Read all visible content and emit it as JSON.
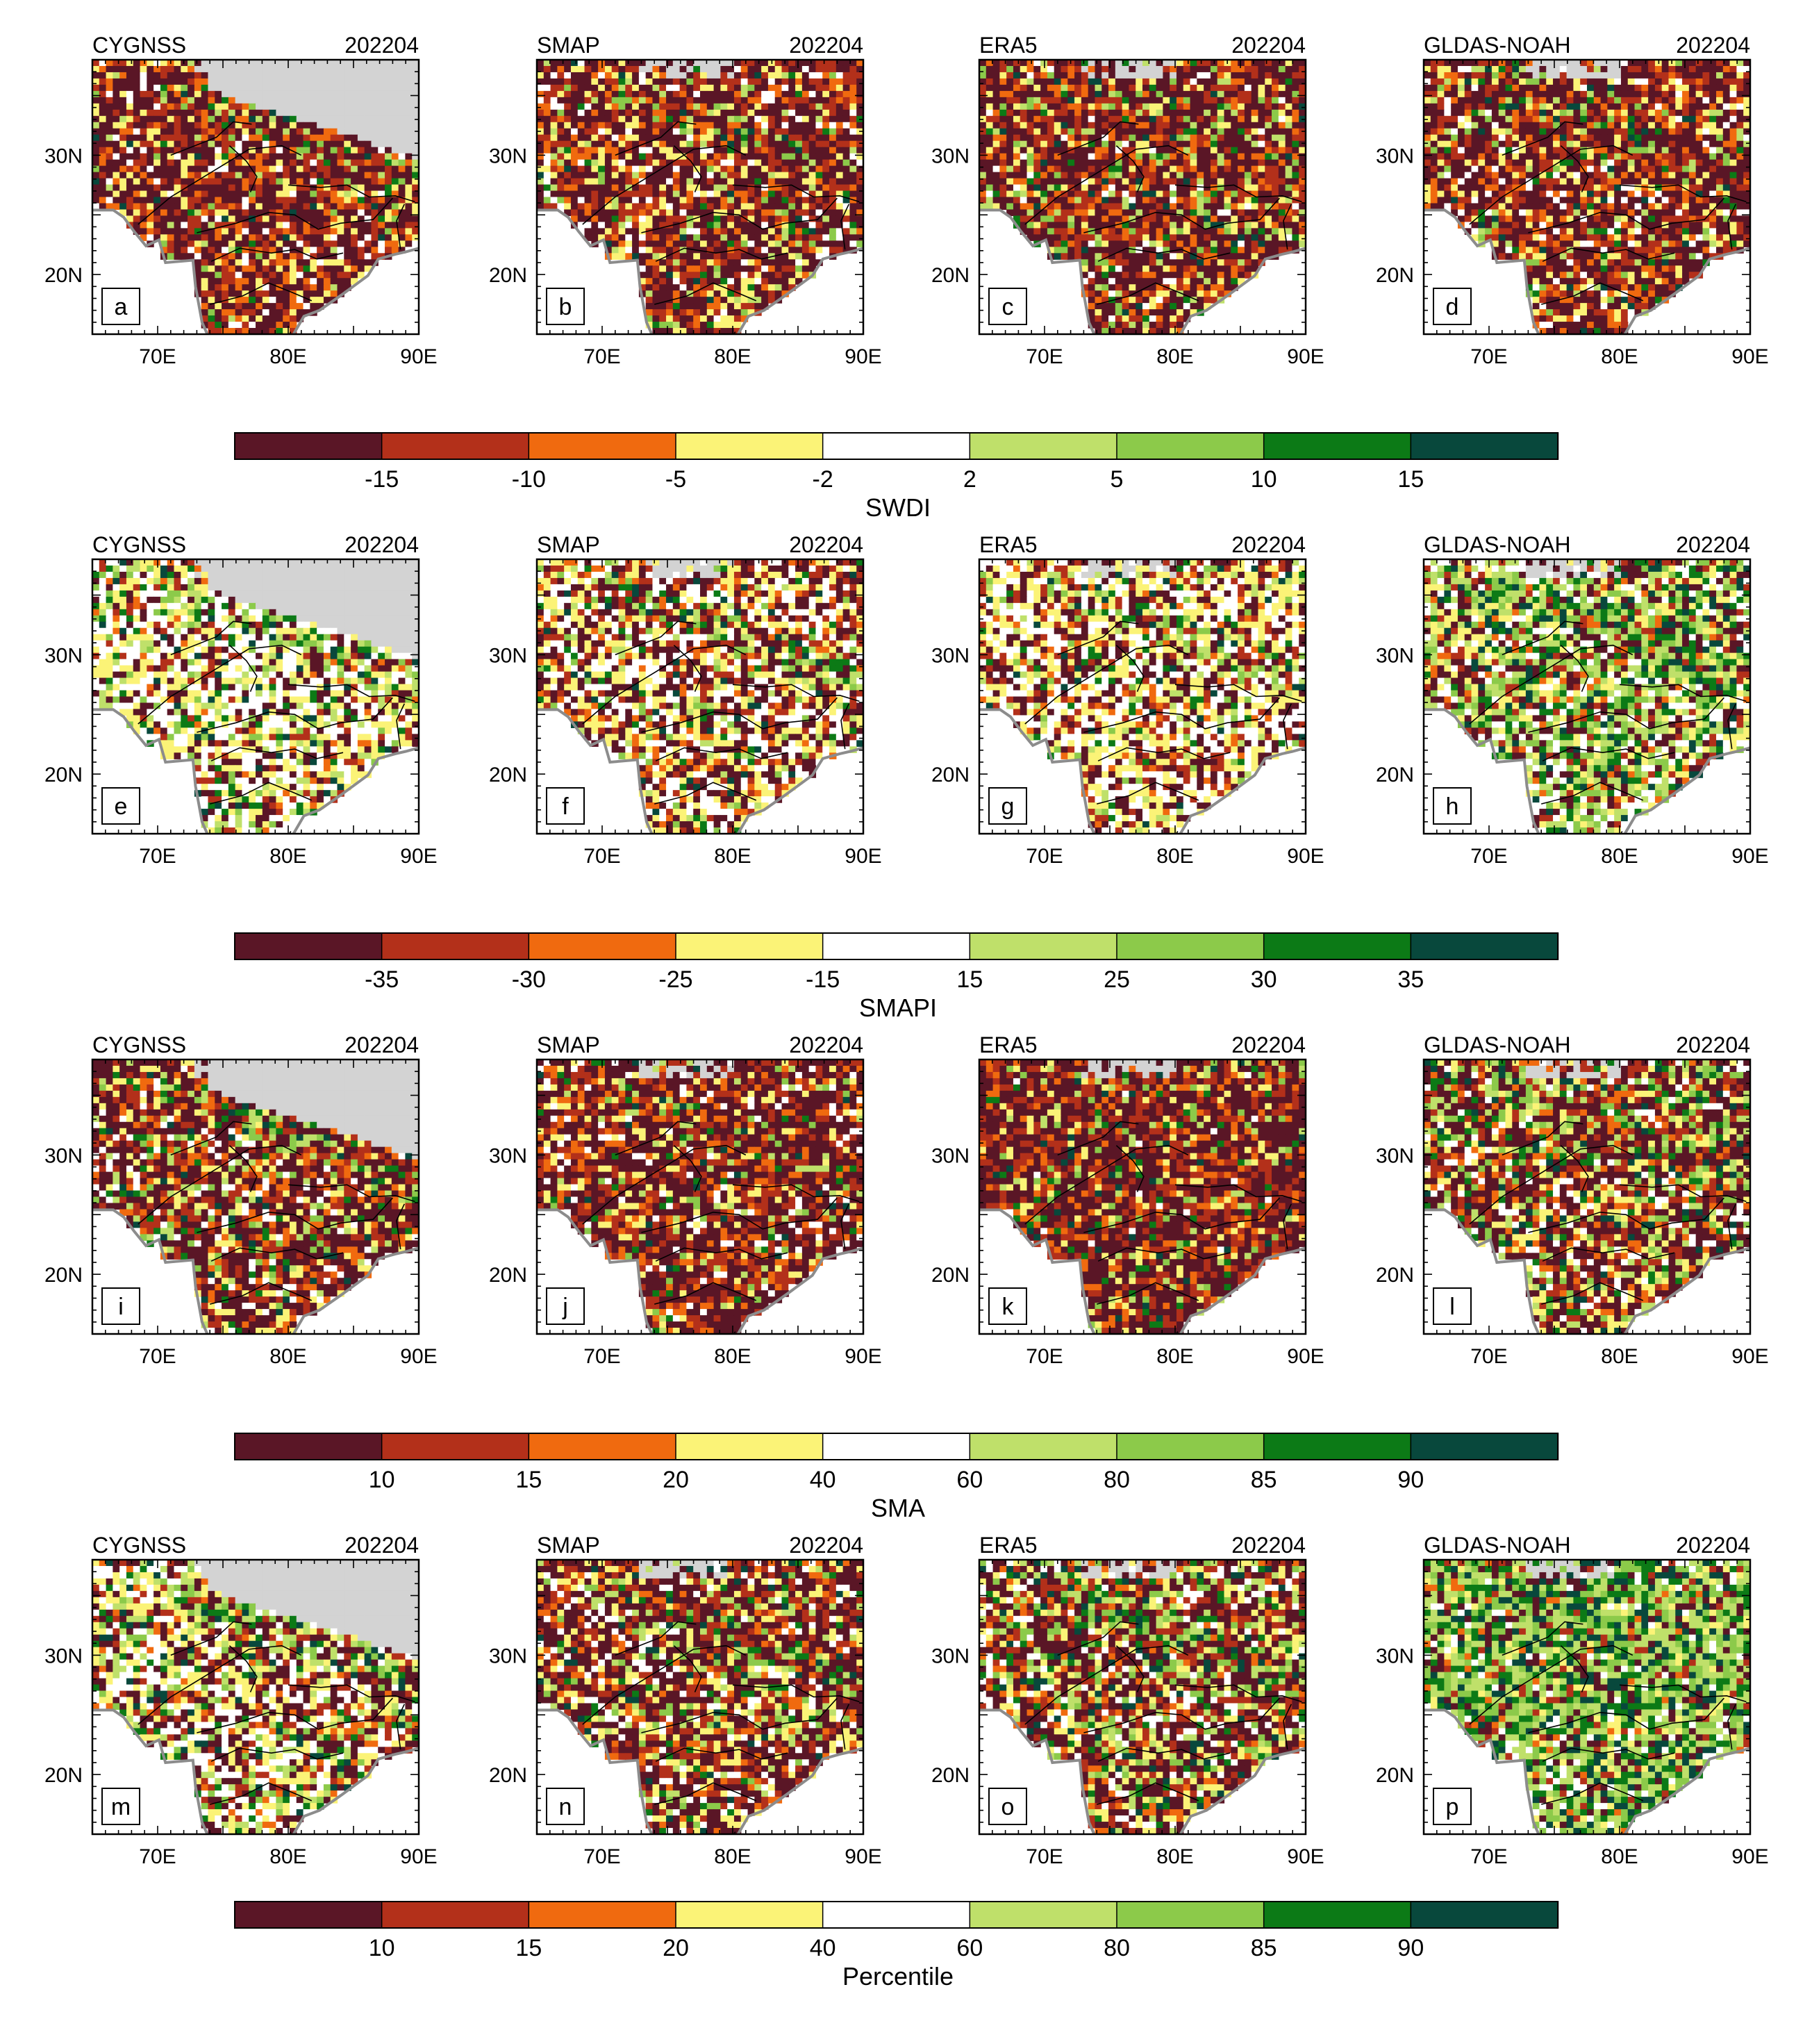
{
  "palettes": {
    "brown_green": [
      "#5a1626",
      "#b3301a",
      "#f06a0f",
      "#fbf377",
      "#ffffff",
      "#bfe06a",
      "#8cca4a",
      "#0c7a16",
      "#08483c"
    ],
    "nodata": "#d3d3d3",
    "coast": "#9a9a9a",
    "border": "#000000"
  },
  "axes": {
    "lat_ticks": [
      "30N",
      "20N"
    ],
    "lon_ticks": [
      "70E",
      "80E",
      "90E"
    ]
  },
  "rows": [
    {
      "date": "202204",
      "panels": [
        {
          "product": "CYGNSS",
          "letter": "a",
          "dry": 0.82,
          "wet": 0.05
        },
        {
          "product": "SMAP",
          "letter": "b",
          "dry": 0.78,
          "wet": 0.08
        },
        {
          "product": "ERA5",
          "letter": "c",
          "dry": 0.8,
          "wet": 0.15
        },
        {
          "product": "GLDAS-NOAH",
          "letter": "d",
          "dry": 0.78,
          "wet": 0.1
        }
      ],
      "colorbar": {
        "labels": [
          "-15",
          "-10",
          "-5",
          "-2",
          "2",
          "5",
          "10",
          "15"
        ],
        "title": "SWDI"
      }
    },
    {
      "date": "202204",
      "panels": [
        {
          "product": "CYGNSS",
          "letter": "e",
          "dry": 0.25,
          "wet": 0.2
        },
        {
          "product": "SMAP",
          "letter": "f",
          "dry": 0.45,
          "wet": 0.12
        },
        {
          "product": "ERA5",
          "letter": "g",
          "dry": 0.38,
          "wet": 0.12
        },
        {
          "product": "GLDAS-NOAH",
          "letter": "h",
          "dry": 0.25,
          "wet": 0.45
        }
      ],
      "colorbar": {
        "labels": [
          "-35",
          "-30",
          "-25",
          "-15",
          "15",
          "25",
          "30",
          "35"
        ],
        "title": "SMAPI"
      }
    },
    {
      "date": "202204",
      "panels": [
        {
          "product": "CYGNSS",
          "letter": "i",
          "dry": 0.72,
          "wet": 0.12
        },
        {
          "product": "SMAP",
          "letter": "j",
          "dry": 0.82,
          "wet": 0.08
        },
        {
          "product": "ERA5",
          "letter": "k",
          "dry": 0.86,
          "wet": 0.12
        },
        {
          "product": "GLDAS-NOAH",
          "letter": "l",
          "dry": 0.58,
          "wet": 0.25
        }
      ],
      "colorbar": {
        "labels": [
          "10",
          "15",
          "20",
          "40",
          "60",
          "80",
          "85",
          "90"
        ],
        "title": "SMA"
      }
    },
    {
      "date": "202204",
      "panels": [
        {
          "product": "CYGNSS",
          "letter": "m",
          "dry": 0.4,
          "wet": 0.2
        },
        {
          "product": "SMAP",
          "letter": "n",
          "dry": 0.65,
          "wet": 0.15
        },
        {
          "product": "ERA5",
          "letter": "o",
          "dry": 0.55,
          "wet": 0.25
        },
        {
          "product": "GLDAS-NOAH",
          "letter": "p",
          "dry": 0.22,
          "wet": 0.65
        }
      ],
      "colorbar": {
        "labels": [
          "10",
          "15",
          "20",
          "40",
          "60",
          "80",
          "85",
          "90"
        ],
        "title": "Percentile"
      }
    }
  ]
}
